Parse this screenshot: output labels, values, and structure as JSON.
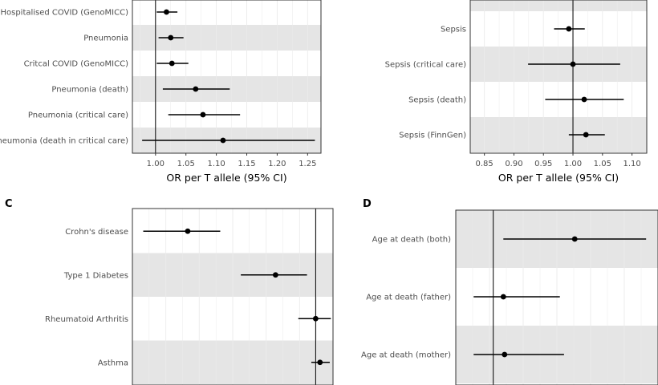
{
  "chart_data": [
    {
      "panel": "",
      "type": "scatter",
      "orientation": "horizontal-forest",
      "categories": [
        "Hospitalised COVID (GenoMICC)",
        "Pneumonia",
        "Critcal COVID (GenoMICC)",
        "Pneumonia (death)",
        "Pneumonia (critical care)",
        "Pneumonia (death in critical care)"
      ],
      "estimate": [
        1.018,
        1.025,
        1.027,
        1.066,
        1.078,
        1.111
      ],
      "lower": [
        1.002,
        1.005,
        1.002,
        1.012,
        1.021,
        0.978
      ],
      "upper": [
        1.036,
        1.046,
        1.054,
        1.122,
        1.139,
        1.262
      ],
      "xticks": [
        "1.00",
        "1.05",
        "1.10",
        "1.15",
        "1.20",
        "1.25"
      ],
      "xlabel": "OR per T allele (95% CI)",
      "reference_line": 1.0,
      "xlim": [
        0.962,
        1.272
      ]
    },
    {
      "panel": "",
      "type": "scatter",
      "orientation": "horizontal-forest",
      "categories": [
        "Sepsis",
        "Sepsis (critical care)",
        "Sepsis (death)",
        "Sepsis (FinnGen)"
      ],
      "estimate": [
        0.993,
        1.0,
        1.019,
        1.022
      ],
      "lower": [
        0.968,
        0.924,
        0.953,
        0.993
      ],
      "upper": [
        1.02,
        1.08,
        1.086,
        1.054
      ],
      "xticks": [
        "0.85",
        "0.90",
        "0.95",
        "1.00",
        "1.05",
        "1.10"
      ],
      "xlabel": "OR per T allele (95% CI)",
      "reference_line": 1.0,
      "xlim": [
        0.826,
        1.125
      ]
    },
    {
      "panel": "C",
      "type": "scatter",
      "orientation": "horizontal-forest",
      "categories": [
        "Crohn's disease",
        "Type 1 Diabetes",
        "Rheumatoid Arthritis",
        "Asthma"
      ],
      "estimate": [
        0.851,
        0.932,
        0.969,
        0.973
      ],
      "lower": [
        0.81,
        0.9,
        0.953,
        0.965
      ],
      "upper": [
        0.881,
        0.961,
        0.983,
        0.982
      ],
      "xticks": [],
      "xlabel": "",
      "reference_line": 0.969,
      "xlim": [
        0.8,
        0.985
      ]
    },
    {
      "panel": "D",
      "type": "scatter",
      "orientation": "horizontal-forest",
      "categories": [
        "Age at death (both)",
        "Age at death (father)",
        "Age at death (mother)"
      ],
      "estimate": [
        1.1,
        0.98,
        0.982
      ],
      "lower": [
        0.98,
        0.93,
        0.93
      ],
      "upper": [
        1.22,
        1.075,
        1.082
      ],
      "xticks": [],
      "xlabel": "",
      "reference_line": 0.963,
      "xlim": [
        0.9,
        1.24
      ]
    }
  ]
}
